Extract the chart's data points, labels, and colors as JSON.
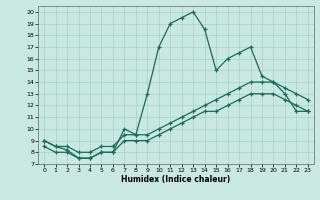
{
  "xlabel": "Humidex (Indice chaleur)",
  "xlim": [
    -0.5,
    23.5
  ],
  "ylim": [
    7,
    20.5
  ],
  "xticks": [
    0,
    1,
    2,
    3,
    4,
    5,
    6,
    7,
    8,
    9,
    10,
    11,
    12,
    13,
    14,
    15,
    16,
    17,
    18,
    19,
    20,
    21,
    22,
    23
  ],
  "yticks": [
    7,
    8,
    9,
    10,
    11,
    12,
    13,
    14,
    15,
    16,
    17,
    18,
    19,
    20
  ],
  "bg_color": "#c8e8e0",
  "line_color": "#1a6b5a",
  "line_main_x": [
    0,
    1,
    2,
    3,
    4,
    5,
    6,
    7,
    8,
    9,
    10,
    11,
    12,
    13,
    14,
    15,
    16,
    17,
    18,
    19,
    20,
    21,
    22,
    23
  ],
  "line_main_y": [
    9,
    8.5,
    8.2,
    7.5,
    7.5,
    8,
    8,
    10,
    9.5,
    13,
    17,
    19,
    19.5,
    20,
    18.5,
    15,
    16,
    16.5,
    17,
    14.5,
    14,
    13,
    11.5,
    11.5
  ],
  "line_mid_x": [
    0,
    1,
    2,
    3,
    4,
    5,
    6,
    7,
    8,
    9,
    10,
    11,
    12,
    13,
    14,
    15,
    16,
    17,
    18,
    19,
    20,
    21,
    22,
    23
  ],
  "line_mid_y": [
    9,
    8.5,
    8.5,
    8.0,
    8.0,
    8.5,
    8.5,
    9.5,
    9.5,
    9.5,
    10,
    10.5,
    11,
    11.5,
    12,
    12.5,
    13,
    13.5,
    14,
    14,
    14,
    13.5,
    13,
    12.5
  ],
  "line_low_x": [
    0,
    1,
    2,
    3,
    4,
    5,
    6,
    7,
    8,
    9,
    10,
    11,
    12,
    13,
    14,
    15,
    16,
    17,
    18,
    19,
    20,
    21,
    22,
    23
  ],
  "line_low_y": [
    8.5,
    8.0,
    8.0,
    7.5,
    7.5,
    8.0,
    8.0,
    9.0,
    9.0,
    9.0,
    9.5,
    10,
    10.5,
    11,
    11.5,
    11.5,
    12,
    12.5,
    13,
    13,
    13,
    12.5,
    12,
    11.5
  ]
}
